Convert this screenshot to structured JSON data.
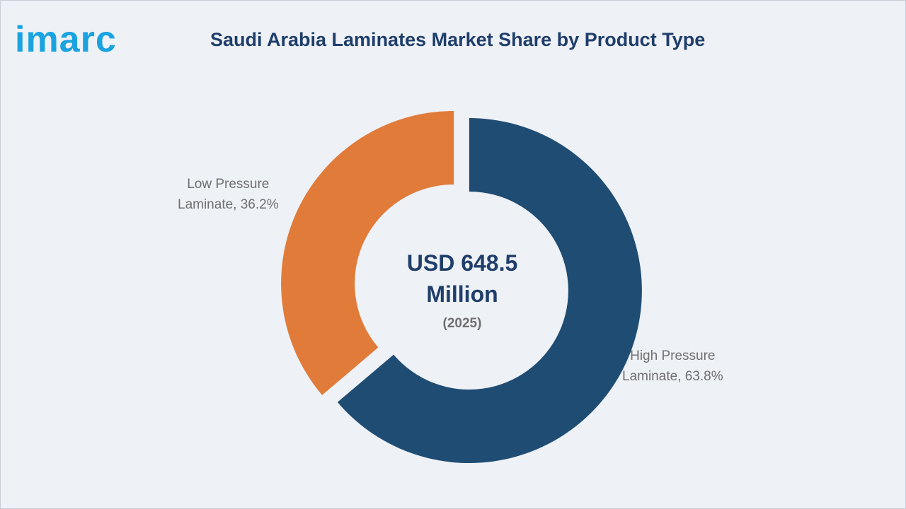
{
  "logo": {
    "text": "imarc",
    "color": "#1aa3e0"
  },
  "title": "Saudi Arabia Laminates Market Share by Product Type",
  "chart_data": {
    "type": "pie",
    "donut": true,
    "title": "Saudi Arabia Laminates Market Share by Product Type",
    "center_text": "USD 648.5 Million",
    "center_subtext": "(2025)",
    "categories": [
      "High Pressure Laminate",
      "Low Pressure Laminate"
    ],
    "values": [
      63.8,
      36.2
    ],
    "unit": "%",
    "colors": [
      "#1f4c73",
      "#e07b39"
    ],
    "labels": [
      {
        "line1": "High Pressure",
        "line2": "Laminate, 63.8%"
      },
      {
        "line1": "Low Pressure",
        "line2": "Laminate, 36.2%"
      }
    ]
  }
}
